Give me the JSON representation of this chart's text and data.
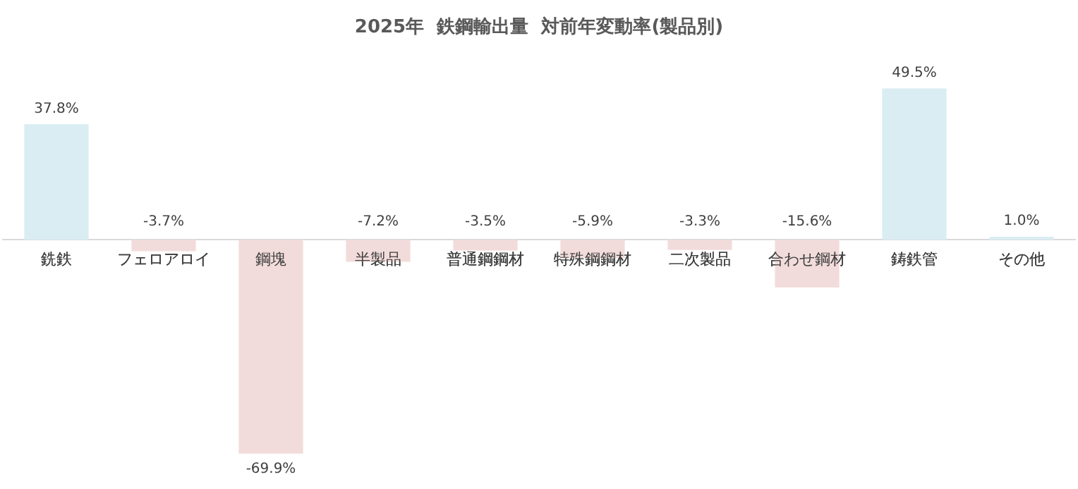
{
  "chart_data": {
    "type": "bar",
    "title": "2025年  鉄鋼輸出量  対前年変動率(製品別)",
    "categories": [
      "銑鉄",
      "フェロアロイ",
      "鋼塊",
      "半製品",
      "普通鋼鋼材",
      "特殊鋼鋼材",
      "二次製品",
      "合わせ鋼材",
      "鋳鉄管",
      "その他"
    ],
    "values": [
      37.8,
      -3.7,
      -69.9,
      -7.2,
      -3.5,
      -5.9,
      -3.3,
      -15.6,
      49.5,
      1.0
    ],
    "value_labels": [
      "37.8%",
      "-3.7%",
      "-69.9%",
      "-7.2%",
      "-3.5%",
      "-5.9%",
      "-3.3%",
      "-15.6%",
      "49.5%",
      "1.0%"
    ],
    "colors": [
      "#daedf3",
      "#f2dcdb",
      "#f2dcdb",
      "#f2dcdb",
      "#f2dcdb",
      "#f2dcdb",
      "#f2dcdb",
      "#f2dcdb",
      "#daedf3",
      "#daedf3"
    ],
    "grid": false,
    "legend": false,
    "tick_labels": "x"
  }
}
